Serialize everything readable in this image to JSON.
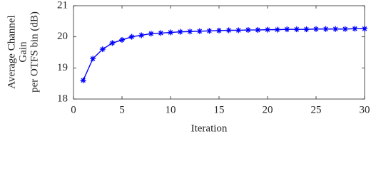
{
  "chart_data": {
    "type": "line",
    "ylabel": [
      "Average Channel",
      "Gain",
      "per OTFS bin (dB)"
    ],
    "xlabel": "Iteration",
    "x": [
      1,
      2,
      3,
      4,
      5,
      6,
      7,
      8,
      9,
      10,
      11,
      12,
      13,
      14,
      15,
      16,
      17,
      18,
      19,
      20,
      21,
      22,
      23,
      24,
      25,
      26,
      27,
      28,
      29,
      30
    ],
    "values": [
      18.6,
      19.3,
      19.6,
      19.8,
      19.9,
      20.0,
      20.05,
      20.1,
      20.12,
      20.14,
      20.16,
      20.17,
      20.18,
      20.19,
      20.2,
      20.21,
      20.21,
      20.22,
      20.22,
      20.23,
      20.23,
      20.24,
      20.24,
      20.24,
      20.25,
      20.25,
      20.25,
      20.25,
      20.26,
      20.26
    ],
    "color": "#0000ff",
    "marker": "asterisk",
    "xlim": [
      0,
      30
    ],
    "xticks": [
      0,
      5,
      10,
      15,
      20,
      25,
      30
    ],
    "ylim": [
      18,
      21
    ],
    "yticks": [
      18,
      19,
      20,
      21
    ],
    "grid": false
  }
}
